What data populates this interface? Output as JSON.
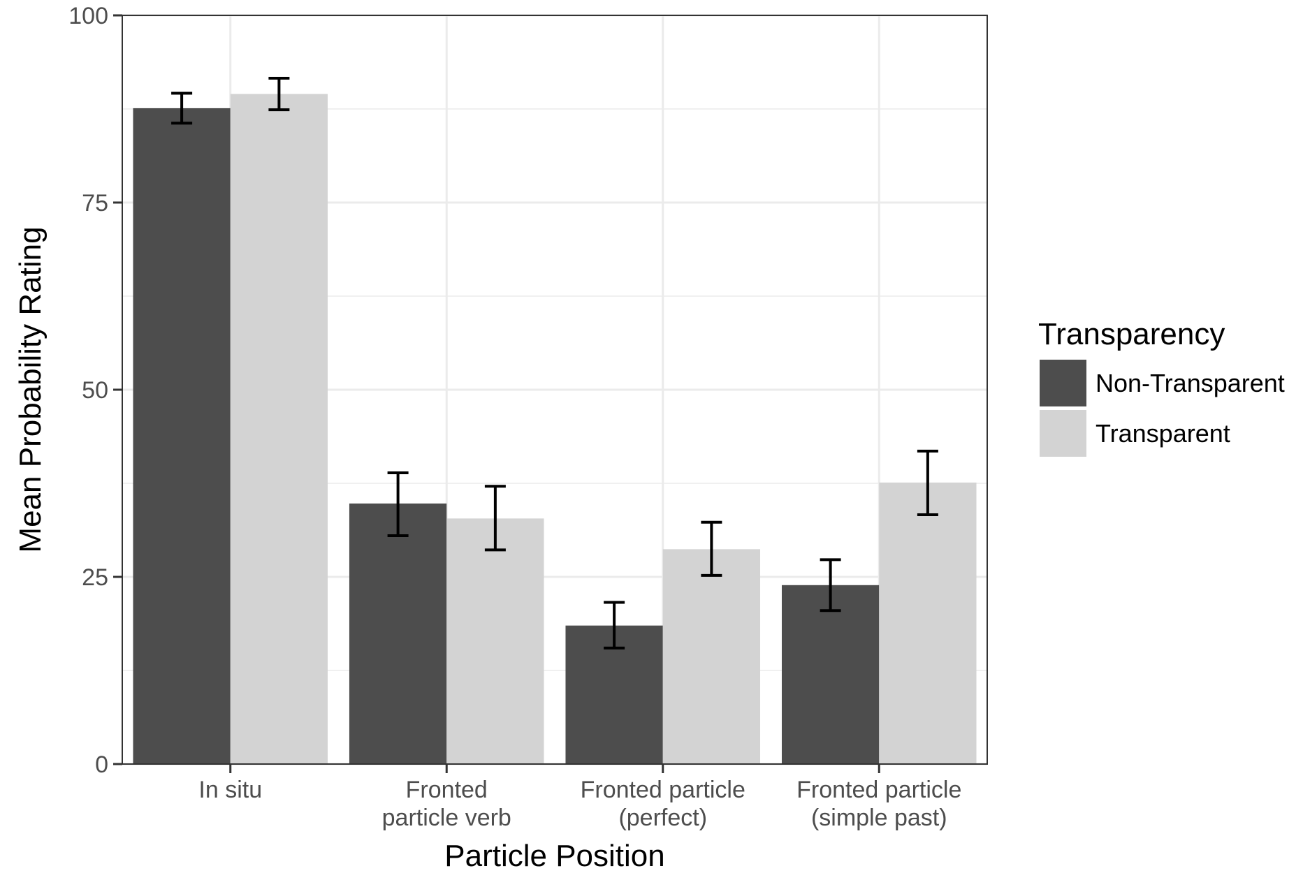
{
  "chart_data": {
    "type": "bar",
    "xlabel": "Particle Position",
    "ylabel": "Mean Probability Rating",
    "ylim": [
      0,
      100
    ],
    "yticks": [
      "0",
      "25",
      "50",
      "75",
      "100"
    ],
    "categories": [
      [
        "In situ"
      ],
      [
        "Fronted",
        "particle verb"
      ],
      [
        "Fronted particle",
        "(perfect)"
      ],
      [
        "Fronted particle",
        "(simple past)"
      ]
    ],
    "legend": {
      "title": "Transparency",
      "position": "right"
    },
    "series": [
      {
        "name": "Non-Transparent",
        "color": "#4d4d4d",
        "values": [
          87.6,
          34.8,
          18.5,
          23.9
        ],
        "err_low": [
          85.6,
          30.5,
          15.5,
          20.5
        ],
        "err_high": [
          89.6,
          38.9,
          21.6,
          27.3
        ]
      },
      {
        "name": "Transparent",
        "color": "#d3d3d3",
        "values": [
          89.5,
          32.8,
          28.7,
          37.6
        ],
        "err_low": [
          87.4,
          28.6,
          25.2,
          33.3
        ],
        "err_high": [
          91.6,
          37.1,
          32.3,
          41.8
        ]
      }
    ],
    "grid": true
  }
}
